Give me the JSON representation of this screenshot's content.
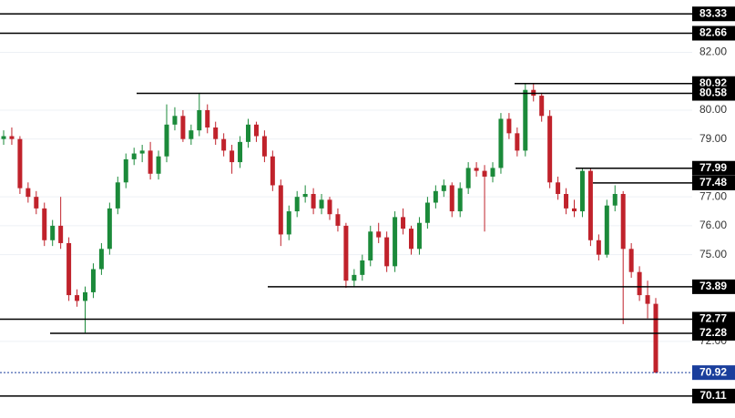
{
  "chart_data": {
    "type": "candlestick",
    "ylim": [
      69.35,
      83.81
    ],
    "yticks": [
      {
        "value": 82,
        "label": "82.00"
      },
      {
        "value": 80,
        "label": "80.00"
      },
      {
        "value": 79,
        "label": "79.00"
      },
      {
        "value": 77,
        "label": "77.00"
      },
      {
        "value": 76,
        "label": "76.00"
      },
      {
        "value": 75,
        "label": "75.00"
      },
      {
        "value": 72,
        "label": "72.00"
      }
    ],
    "grid": true,
    "up_color": "#1b8a3a",
    "down_color": "#c0222b",
    "ohlc": [
      [
        79.0,
        79.3,
        78.8,
        79.1
      ],
      [
        79.1,
        79.4,
        78.8,
        79.0
      ],
      [
        79.0,
        79.1,
        77.1,
        77.3
      ],
      [
        77.3,
        77.5,
        76.8,
        77.0
      ],
      [
        77.0,
        77.2,
        76.4,
        76.6
      ],
      [
        76.6,
        76.8,
        75.3,
        75.5
      ],
      [
        75.5,
        76.2,
        75.3,
        76.0
      ],
      [
        76.0,
        77.0,
        75.2,
        75.4
      ],
      [
        75.4,
        75.6,
        73.4,
        73.6
      ],
      [
        73.6,
        73.8,
        73.2,
        73.4
      ],
      [
        73.4,
        73.9,
        72.3,
        73.7
      ],
      [
        73.7,
        74.7,
        73.5,
        74.5
      ],
      [
        74.5,
        75.4,
        74.3,
        75.2
      ],
      [
        75.2,
        76.8,
        75.0,
        76.6
      ],
      [
        76.6,
        77.7,
        76.4,
        77.5
      ],
      [
        77.5,
        78.5,
        77.3,
        78.3
      ],
      [
        78.3,
        78.7,
        78.1,
        78.5
      ],
      [
        78.5,
        78.8,
        78.2,
        78.6
      ],
      [
        78.6,
        78.9,
        77.6,
        77.8
      ],
      [
        77.8,
        78.6,
        77.6,
        78.4
      ],
      [
        78.4,
        80.2,
        78.2,
        79.5
      ],
      [
        79.5,
        80.1,
        79.3,
        79.8
      ],
      [
        79.8,
        80.0,
        78.9,
        79.0
      ],
      [
        79.0,
        79.5,
        78.8,
        79.3
      ],
      [
        79.3,
        80.6,
        79.1,
        80.0
      ],
      [
        80.0,
        80.2,
        79.2,
        79.4
      ],
      [
        79.4,
        79.6,
        78.8,
        79.0
      ],
      [
        79.0,
        79.2,
        78.4,
        78.6
      ],
      [
        78.6,
        78.8,
        77.8,
        78.2
      ],
      [
        78.2,
        79.1,
        78.0,
        78.9
      ],
      [
        78.9,
        79.7,
        78.7,
        79.5
      ],
      [
        79.5,
        79.6,
        78.9,
        79.1
      ],
      [
        79.1,
        79.3,
        78.2,
        78.4
      ],
      [
        78.4,
        78.6,
        77.2,
        77.4
      ],
      [
        77.4,
        77.6,
        75.3,
        75.7
      ],
      [
        75.7,
        76.7,
        75.5,
        76.5
      ],
      [
        76.5,
        77.2,
        76.3,
        77.0
      ],
      [
        77.0,
        77.4,
        76.8,
        77.1
      ],
      [
        77.1,
        77.3,
        76.4,
        76.6
      ],
      [
        76.6,
        77.1,
        76.4,
        76.9
      ],
      [
        76.9,
        77.0,
        76.2,
        76.4
      ],
      [
        76.4,
        76.6,
        75.8,
        76.0
      ],
      [
        76.0,
        76.1,
        73.85,
        74.1
      ],
      [
        74.1,
        74.5,
        73.9,
        74.3
      ],
      [
        74.3,
        75.0,
        74.1,
        74.8
      ],
      [
        74.8,
        76.0,
        74.6,
        75.8
      ],
      [
        75.8,
        76.1,
        75.4,
        75.6
      ],
      [
        75.6,
        75.8,
        74.4,
        74.6
      ],
      [
        74.6,
        76.5,
        74.4,
        76.3
      ],
      [
        76.3,
        76.6,
        75.7,
        75.9
      ],
      [
        75.9,
        76.0,
        75.0,
        75.2
      ],
      [
        75.2,
        76.3,
        75.0,
        76.1
      ],
      [
        76.1,
        77.0,
        75.9,
        76.8
      ],
      [
        76.8,
        77.4,
        76.6,
        77.2
      ],
      [
        77.2,
        77.6,
        77.0,
        77.4
      ],
      [
        77.4,
        77.5,
        76.3,
        76.5
      ],
      [
        76.5,
        77.5,
        76.3,
        77.3
      ],
      [
        77.3,
        78.2,
        77.1,
        78.0
      ],
      [
        78.0,
        78.2,
        77.7,
        77.9
      ],
      [
        77.9,
        78.1,
        75.8,
        77.7
      ],
      [
        77.7,
        78.2,
        77.5,
        78.0
      ],
      [
        78.0,
        79.9,
        77.8,
        79.7
      ],
      [
        79.7,
        79.9,
        79.0,
        79.2
      ],
      [
        79.2,
        79.4,
        78.4,
        78.6
      ],
      [
        78.6,
        80.92,
        78.4,
        80.7
      ],
      [
        80.7,
        80.9,
        80.3,
        80.5
      ],
      [
        80.5,
        80.6,
        79.6,
        79.8
      ],
      [
        79.8,
        80.0,
        77.3,
        77.5
      ],
      [
        77.5,
        77.7,
        76.9,
        77.1
      ],
      [
        77.1,
        77.3,
        76.4,
        76.6
      ],
      [
        76.6,
        76.9,
        76.3,
        76.5
      ],
      [
        76.5,
        77.99,
        76.3,
        77.9
      ],
      [
        77.9,
        78.0,
        75.3,
        75.5
      ],
      [
        75.5,
        75.7,
        74.8,
        75.0
      ],
      [
        75.0,
        76.9,
        74.9,
        76.7
      ],
      [
        76.7,
        77.4,
        76.5,
        77.1
      ],
      [
        77.1,
        77.2,
        72.6,
        75.2
      ],
      [
        75.2,
        75.4,
        74.2,
        74.4
      ],
      [
        74.4,
        74.6,
        73.4,
        73.6
      ],
      [
        73.6,
        74.1,
        72.8,
        73.3
      ],
      [
        73.3,
        73.5,
        70.9,
        70.92
      ]
    ],
    "levels": [
      83.33,
      82.66,
      80.92,
      80.58,
      77.99,
      77.48,
      73.89,
      72.77,
      72.28,
      70.11
    ],
    "last_price": 70.92,
    "last_price_color": "#1a3e9c"
  }
}
